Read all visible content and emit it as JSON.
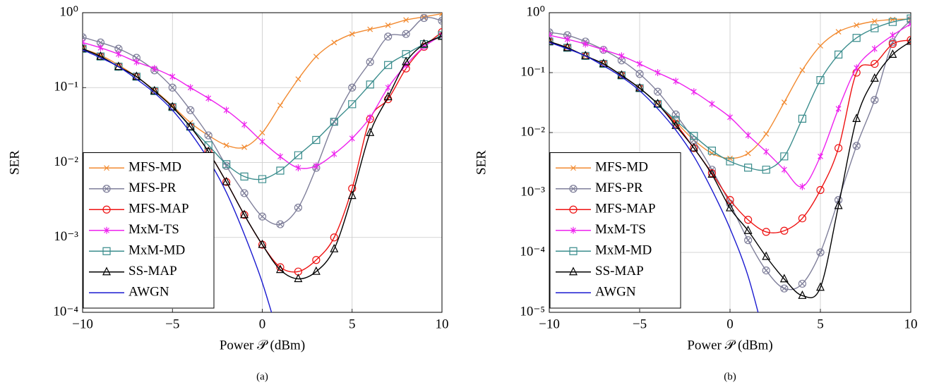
{
  "chart_data": [
    {
      "type": "line",
      "caption": "(a)",
      "xlabel": "Power 𝒫 (dBm)",
      "ylabel": "SER",
      "x": [
        -10,
        -9,
        -8,
        -7,
        -6,
        -5,
        -4,
        -3,
        -2,
        -1,
        0,
        1,
        2,
        3,
        4,
        5,
        6,
        7,
        8,
        9,
        10
      ],
      "xlim": [
        -10,
        10
      ],
      "ylim": [
        0.0001,
        1
      ],
      "yscale": "log",
      "grid": true,
      "legend": "lower left",
      "xticks": [
        {
          "value": -10,
          "label": "−10"
        },
        {
          "value": -5,
          "label": "−5"
        },
        0,
        5,
        10
      ],
      "yticks": [
        {
          "value": 1,
          "label": "10⁰"
        },
        {
          "value": 0.1,
          "label": "10⁻¹"
        },
        {
          "value": 0.01,
          "label": "10⁻²"
        },
        {
          "value": 0.001,
          "label": "10⁻³"
        },
        {
          "value": 0.0001,
          "label": "10⁻⁴"
        }
      ],
      "series": [
        {
          "name": "MFS-MD",
          "color": "#f28a30",
          "marker": "x",
          "values": [
            0.33,
            0.27,
            0.2,
            0.14,
            0.092,
            0.057,
            0.034,
            0.023,
            0.017,
            0.016,
            0.025,
            0.058,
            0.13,
            0.26,
            0.4,
            0.52,
            0.6,
            0.68,
            0.8,
            0.88,
            0.97
          ]
        },
        {
          "name": "MFS-PR",
          "color": "#7f7f9a",
          "marker": "circle-x",
          "values": [
            0.47,
            0.4,
            0.33,
            0.25,
            0.17,
            0.1,
            0.05,
            0.023,
            0.009,
            0.0039,
            0.0019,
            0.0015,
            0.0025,
            0.0085,
            0.035,
            0.1,
            0.22,
            0.48,
            0.52,
            0.85,
            0.78
          ]
        },
        {
          "name": "MFS-MAP",
          "color": "#ee1111",
          "marker": "circle",
          "values": [
            0.33,
            0.26,
            0.19,
            0.14,
            0.09,
            0.055,
            0.03,
            0.014,
            0.0055,
            0.002,
            0.0008,
            0.0004,
            0.00035,
            0.0005,
            0.001,
            0.0045,
            0.038,
            0.07,
            0.18,
            0.35,
            0.55
          ]
        },
        {
          "name": "MxM-TS",
          "color": "#ee22ee",
          "marker": "asterisk",
          "values": [
            0.4,
            0.34,
            0.28,
            0.22,
            0.18,
            0.14,
            0.1,
            0.072,
            0.05,
            0.032,
            0.019,
            0.012,
            0.0085,
            0.009,
            0.013,
            0.021,
            0.04,
            0.1,
            0.2,
            0.35,
            0.5
          ]
        },
        {
          "name": "MxM-MD",
          "color": "#3b8d8d",
          "marker": "square",
          "values": [
            0.33,
            0.26,
            0.19,
            0.14,
            0.09,
            0.055,
            0.03,
            0.017,
            0.0095,
            0.0065,
            0.006,
            0.0078,
            0.0125,
            0.02,
            0.035,
            0.06,
            0.11,
            0.2,
            0.28,
            0.38,
            0.5
          ]
        },
        {
          "name": "SS-MAP",
          "color": "#000000",
          "marker": "triangle",
          "values": [
            0.33,
            0.26,
            0.19,
            0.14,
            0.09,
            0.055,
            0.03,
            0.014,
            0.0055,
            0.002,
            0.0008,
            0.00037,
            0.00028,
            0.00035,
            0.0007,
            0.0036,
            0.025,
            0.075,
            0.22,
            0.38,
            0.48
          ]
        },
        {
          "name": "AWGN",
          "color": "#1a1ad0",
          "marker": "none",
          "values": [
            0.32,
            0.25,
            0.19,
            0.13,
            0.085,
            0.05,
            0.025,
            0.011,
            0.004,
            0.0011,
            0.00025,
            4e-05,
            null,
            null,
            null,
            null,
            null,
            null,
            null,
            null,
            null
          ]
        }
      ]
    },
    {
      "type": "line",
      "caption": "(b)",
      "xlabel": "Power 𝒫 (dBm)",
      "ylabel": "SER",
      "x": [
        -10,
        -9,
        -8,
        -7,
        -6,
        -5,
        -4,
        -3,
        -2,
        -1,
        0,
        1,
        2,
        3,
        4,
        5,
        6,
        7,
        8,
        9,
        10
      ],
      "xlim": [
        -10,
        10
      ],
      "ylim": [
        1e-05,
        1
      ],
      "yscale": "log",
      "grid": true,
      "legend": "lower left",
      "xticks": [
        {
          "value": -10,
          "label": "−10"
        },
        {
          "value": -5,
          "label": "−5"
        },
        0,
        5,
        10
      ],
      "yticks": [
        {
          "value": 1,
          "label": "10⁰"
        },
        {
          "value": 0.1,
          "label": "10⁻¹"
        },
        {
          "value": 0.01,
          "label": "10⁻²"
        },
        {
          "value": 0.001,
          "label": "10⁻³"
        },
        {
          "value": 0.0001,
          "label": "10⁻⁴"
        },
        {
          "value": 1e-05,
          "label": "10⁻⁵"
        }
      ],
      "series": [
        {
          "name": "MFS-MD",
          "color": "#f28a30",
          "marker": "x",
          "values": [
            0.33,
            0.26,
            0.19,
            0.14,
            0.09,
            0.055,
            0.03,
            0.015,
            0.0075,
            0.0045,
            0.0037,
            0.0045,
            0.0095,
            0.032,
            0.11,
            0.28,
            0.48,
            0.62,
            0.72,
            0.77,
            0.78
          ]
        },
        {
          "name": "MFS-PR",
          "color": "#7f7f9a",
          "marker": "circle-x",
          "values": [
            0.47,
            0.42,
            0.33,
            0.24,
            0.16,
            0.095,
            0.048,
            0.02,
            0.0075,
            0.0024,
            0.00065,
            0.00016,
            5e-05,
            2.5e-05,
            3e-05,
            0.0001,
            0.00075,
            0.006,
            0.035,
            0.32,
            0.75
          ]
        },
        {
          "name": "MFS-MAP",
          "color": "#ee1111",
          "marker": "circle",
          "values": [
            0.33,
            0.26,
            0.19,
            0.14,
            0.09,
            0.055,
            0.03,
            0.014,
            0.0055,
            0.0021,
            0.00075,
            0.00035,
            0.00022,
            0.00023,
            0.00037,
            0.0011,
            0.0055,
            0.1,
            0.14,
            0.3,
            0.35
          ]
        },
        {
          "name": "MxM-TS",
          "color": "#ee22ee",
          "marker": "asterisk",
          "values": [
            0.42,
            0.36,
            0.3,
            0.24,
            0.19,
            0.14,
            0.1,
            0.072,
            0.048,
            0.03,
            0.018,
            0.009,
            0.0048,
            0.0024,
            0.00125,
            0.004,
            0.025,
            0.12,
            0.25,
            0.42,
            0.65
          ]
        },
        {
          "name": "MxM-MD",
          "color": "#3b8d8d",
          "marker": "square",
          "values": [
            0.33,
            0.26,
            0.19,
            0.14,
            0.09,
            0.055,
            0.03,
            0.016,
            0.0088,
            0.005,
            0.0033,
            0.0026,
            0.0024,
            0.004,
            0.017,
            0.075,
            0.2,
            0.38,
            0.55,
            0.7,
            0.8
          ]
        },
        {
          "name": "SS-MAP",
          "color": "#000000",
          "marker": "triangle",
          "values": [
            0.33,
            0.26,
            0.19,
            0.14,
            0.09,
            0.055,
            0.03,
            0.013,
            0.0055,
            0.002,
            0.00055,
            0.00023,
            8.5e-05,
            3.6e-05,
            1.9e-05,
            2.6e-05,
            0.0006,
            0.017,
            0.08,
            0.2,
            0.33
          ]
        },
        {
          "name": "AWGN",
          "color": "#1a1ad0",
          "marker": "none",
          "values": [
            0.32,
            0.25,
            0.19,
            0.13,
            0.085,
            0.05,
            0.025,
            0.011,
            0.004,
            0.0011,
            0.00025,
            4e-05,
            3e-06,
            null,
            null,
            null,
            null,
            null,
            null,
            null,
            null
          ]
        }
      ]
    }
  ]
}
